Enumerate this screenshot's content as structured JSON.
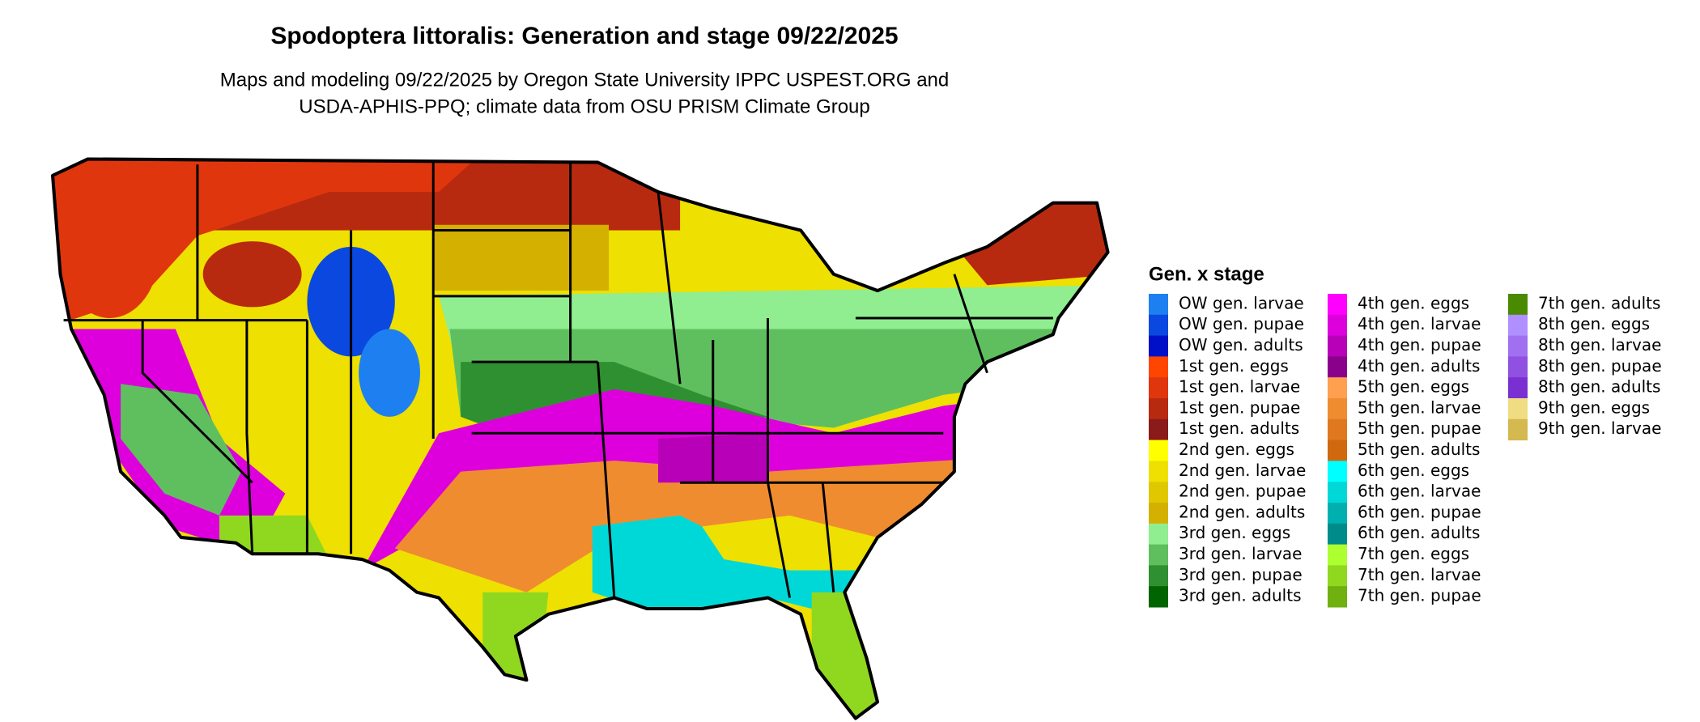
{
  "header": {
    "title": "Spodoptera littoralis: Generation and stage 09/22/2025",
    "subtitle_lines": [
      "Maps and modeling 09/22/2025 by Oregon State University IPPC USPEST.ORG and",
      "USDA-APHIS-PPQ; climate data from OSU PRISM Climate Group"
    ]
  },
  "legend": {
    "title": "Gen. x stage",
    "columns": [
      [
        {
          "label": "OW gen. larvae",
          "color": "#1e80f0"
        },
        {
          "label": "OW gen. pupae",
          "color": "#0a48e0"
        },
        {
          "label": "OW gen. adults",
          "color": "#0010c8"
        },
        {
          "label": "1st gen. eggs",
          "color": "#ff4500"
        },
        {
          "label": "1st gen. larvae",
          "color": "#e0360e"
        },
        {
          "label": "1st gen. pupae",
          "color": "#b82a10"
        },
        {
          "label": "1st gen. adults",
          "color": "#8b1a1a"
        },
        {
          "label": "2nd gen. eggs",
          "color": "#ffff00"
        },
        {
          "label": "2nd gen. larvae",
          "color": "#eee000"
        },
        {
          "label": "2nd gen. pupae",
          "color": "#e0c800"
        },
        {
          "label": "2nd gen. adults",
          "color": "#d4b000"
        },
        {
          "label": "3rd gen. eggs",
          "color": "#90ee90"
        },
        {
          "label": "3rd gen. larvae",
          "color": "#5fbf5f"
        },
        {
          "label": "3rd gen. pupae",
          "color": "#2e9030"
        },
        {
          "label": "3rd gen. adults",
          "color": "#006400"
        }
      ],
      [
        {
          "label": "4th gen. eggs",
          "color": "#ff00ff"
        },
        {
          "label": "4th gen. larvae",
          "color": "#dd00dd"
        },
        {
          "label": "4th gen. pupae",
          "color": "#b800b8"
        },
        {
          "label": "4th gen. adults",
          "color": "#8b008b"
        },
        {
          "label": "5th gen. eggs",
          "color": "#ffa050"
        },
        {
          "label": "5th gen. larvae",
          "color": "#f08c30"
        },
        {
          "label": "5th gen. pupae",
          "color": "#e07820"
        },
        {
          "label": "5th gen. adults",
          "color": "#d06810"
        },
        {
          "label": "6th gen. eggs",
          "color": "#00ffff"
        },
        {
          "label": "6th gen. larvae",
          "color": "#00d8d8"
        },
        {
          "label": "6th gen. pupae",
          "color": "#00b0b0"
        },
        {
          "label": "6th gen. adults",
          "color": "#008b8b"
        },
        {
          "label": "7th gen. eggs",
          "color": "#adff2f"
        },
        {
          "label": "7th gen. larvae",
          "color": "#90d820"
        },
        {
          "label": "7th gen. pupae",
          "color": "#70b010"
        }
      ],
      [
        {
          "label": "7th gen. adults",
          "color": "#4a8a00"
        },
        {
          "label": "8th gen. eggs",
          "color": "#b090ff"
        },
        {
          "label": "8th gen. larvae",
          "color": "#a070f0"
        },
        {
          "label": "8th gen. pupae",
          "color": "#9050e0"
        },
        {
          "label": "8th gen. adults",
          "color": "#7a30d0"
        },
        {
          "label": "9th gen. eggs",
          "color": "#f0dc82"
        },
        {
          "label": "9th gen. larvae",
          "color": "#d4b850"
        }
      ]
    ]
  }
}
